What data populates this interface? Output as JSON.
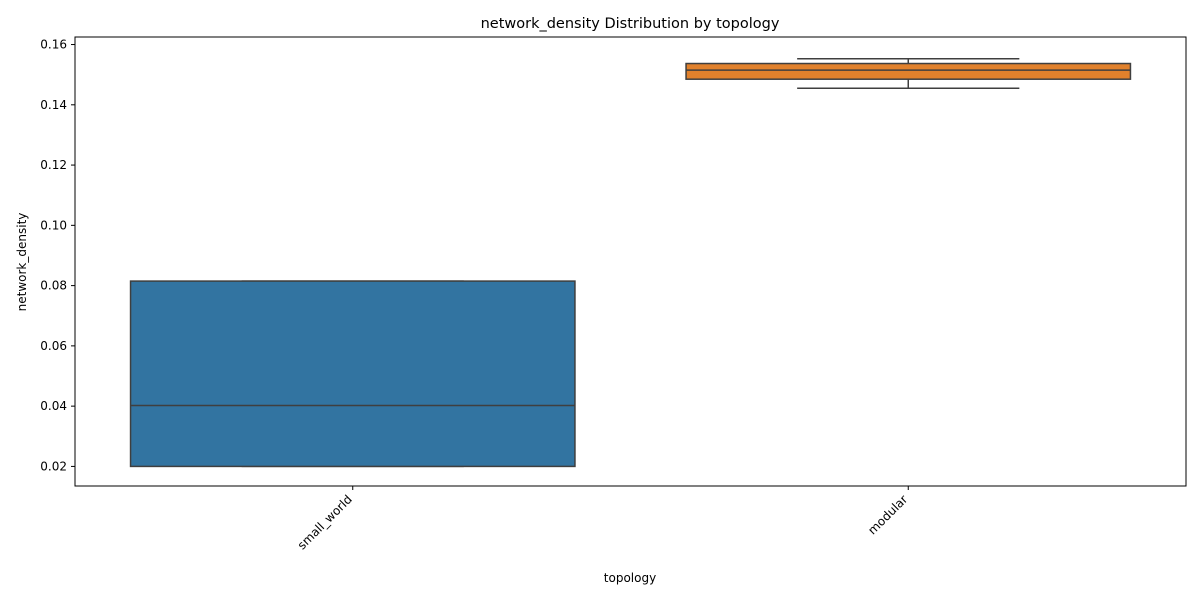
{
  "chart_data": {
    "type": "box",
    "title": "network_density Distribution by topology",
    "xlabel": "topology",
    "ylabel": "network_density",
    "categories": [
      "small_world",
      "modular"
    ],
    "ylim": [
      0.0135,
      0.1625
    ],
    "yticks": [
      0.02,
      0.04,
      0.06,
      0.08,
      0.1,
      0.12,
      0.14,
      0.16
    ],
    "ytick_labels": [
      "0.02",
      "0.04",
      "0.06",
      "0.08",
      "0.10",
      "0.12",
      "0.14",
      "0.16"
    ],
    "grid": false,
    "series": [
      {
        "category": "small_world",
        "whislo": 0.02,
        "q1": 0.02,
        "med": 0.0402,
        "q3": 0.0815,
        "whishi": 0.0815,
        "color": "#3274a1"
      },
      {
        "category": "modular",
        "whislo": 0.1455,
        "q1": 0.1485,
        "med": 0.1515,
        "q3": 0.1537,
        "whishi": 0.1553,
        "color": "#e1812c"
      }
    ]
  }
}
